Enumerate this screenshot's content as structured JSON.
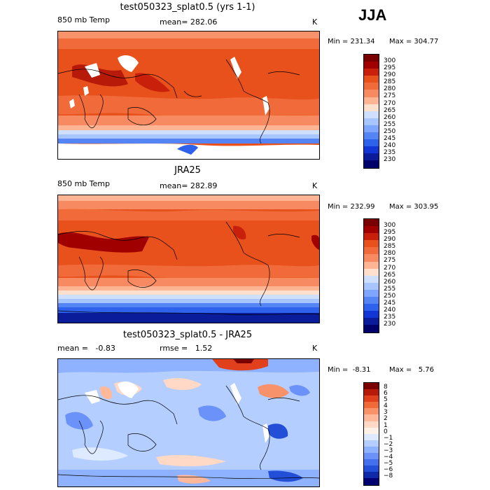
{
  "season": "JJA",
  "panels": [
    {
      "title": "test050323_splat0.5 (yrs 1-1)",
      "left_label": "850 mb Temp",
      "stat_text": "mean= 282.06",
      "unit": "K",
      "min_text": "Min = 231.34",
      "max_text": "Max = 304.77",
      "colorbar_labels": [
        "300",
        "295",
        "290",
        "285",
        "280",
        "275",
        "270",
        "265",
        "260",
        "255",
        "250",
        "245",
        "240",
        "235",
        "230"
      ],
      "colorbar_colors": [
        "#7a0000",
        "#a00000",
        "#c8200a",
        "#e8501c",
        "#f06a3a",
        "#f88a62",
        "#ffb493",
        "#ffe0cc",
        "#cfe0ff",
        "#a7c6ff",
        "#7ea6ff",
        "#5585f5",
        "#2f62ec",
        "#1235d6",
        "#0a1c9a",
        "#00006a"
      ]
    },
    {
      "title": "JRA25",
      "left_label": "850 mb Temp",
      "stat_text": "mean= 282.89",
      "unit": "K",
      "min_text": "Min = 232.99",
      "max_text": "Max = 303.95",
      "colorbar_labels": [
        "300",
        "295",
        "290",
        "285",
        "280",
        "275",
        "270",
        "265",
        "260",
        "255",
        "250",
        "245",
        "240",
        "235",
        "230"
      ],
      "colorbar_colors": [
        "#7a0000",
        "#a00000",
        "#c8200a",
        "#e8501c",
        "#f06a3a",
        "#f88a62",
        "#ffb493",
        "#ffe0cc",
        "#cfe0ff",
        "#a7c6ff",
        "#7ea6ff",
        "#5585f5",
        "#2f62ec",
        "#1235d6",
        "#0a1c9a",
        "#00006a"
      ]
    },
    {
      "title": "test050323_splat0.5 - JRA25",
      "left_label": "mean =   -0.83",
      "stat_text": "rmse =   1.52",
      "unit": "K",
      "min_text": "Min =  -8.31",
      "max_text": "Max =   5.76",
      "colorbar_labels": [
        "8",
        "6",
        "5",
        "4",
        "3",
        "2",
        "1",
        "0",
        "−1",
        "−2",
        "−3",
        "−4",
        "−5",
        "−6",
        "−8"
      ],
      "colorbar_colors": [
        "#7a0000",
        "#b81a0a",
        "#e0401c",
        "#f06a3a",
        "#f8926a",
        "#ffb89a",
        "#ffd8c6",
        "#fff0e8",
        "#ddeaff",
        "#b4ceff",
        "#8eb2ff",
        "#6a92f8",
        "#4470ee",
        "#234ed8",
        "#0f2aa8",
        "#000070"
      ]
    }
  ]
}
